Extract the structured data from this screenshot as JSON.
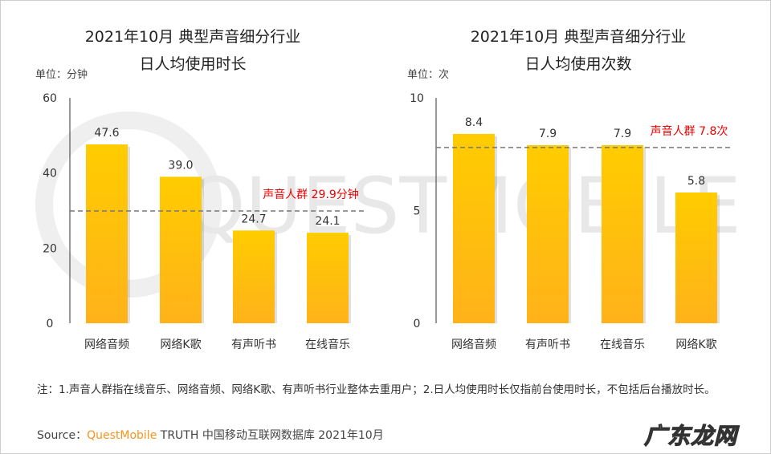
{
  "chart_data": [
    {
      "type": "bar",
      "title_line1": "2021年10月 典型声音细分行业",
      "title_line2": "日人均使用时长",
      "unit_label": "单位：分钟",
      "categories": [
        "网络音频",
        "网络K歌",
        "有声听书",
        "在线音乐"
      ],
      "values": [
        47.6,
        39.0,
        24.7,
        24.1
      ],
      "value_labels": [
        "47.6",
        "39.0",
        "24.7",
        "24.1"
      ],
      "ylim": [
        0,
        60
      ],
      "yticks": [
        "0",
        "20",
        "40",
        "60"
      ],
      "reference": {
        "value": 29.9,
        "label": "声音人群 29.9分钟"
      },
      "bar_color": "#ffc400"
    },
    {
      "type": "bar",
      "title_line1": "2021年10月 典型声音细分行业",
      "title_line2": "日人均使用次数",
      "unit_label": "单位：次",
      "categories": [
        "网络音频",
        "有声听书",
        "在线音乐",
        "网络K歌"
      ],
      "values": [
        8.4,
        7.9,
        7.9,
        5.8
      ],
      "value_labels": [
        "8.4",
        "7.9",
        "7.9",
        "5.8"
      ],
      "ylim": [
        0,
        10
      ],
      "yticks": [
        "0",
        "5",
        "10"
      ],
      "reference": {
        "value": 7.8,
        "label": "声音人群 7.8次"
      },
      "bar_color": "#ffc400"
    }
  ],
  "footer": {
    "note": "注：1.声音人群指在线音乐、网络音频、网络K歌、有声听书行业整体去重用户；2.日人均使用时长仅指前台使用时长，不包括后台播放时长。",
    "source_prefix": "Source：",
    "source_brand": "QuestMobile",
    "source_rest": " TRUTH 中国移动互联网数据库 2021年10月"
  },
  "watermark": {
    "text": "QUESTMOBILE",
    "corner_logo": "广东龙网"
  }
}
